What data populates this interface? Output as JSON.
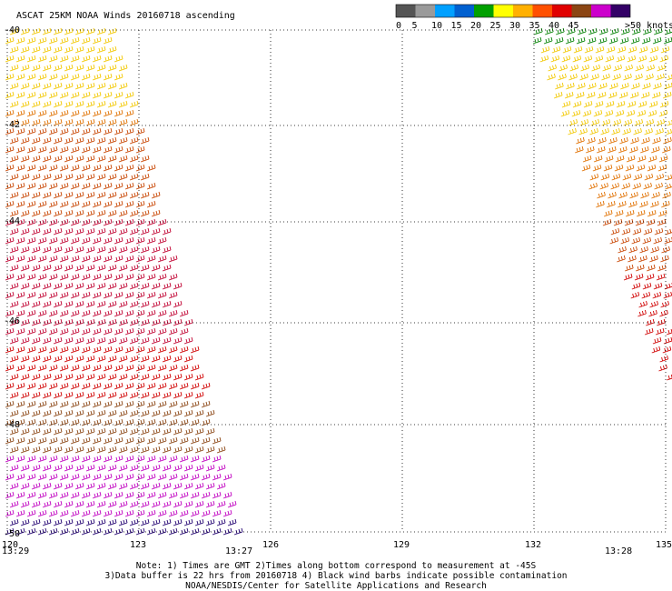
{
  "title": "ASCAT 25KM NOAA Winds 20160718 ascending",
  "legend": {
    "unit_label": ">50 knots",
    "bins": [
      {
        "label": "0",
        "color": "#555555"
      },
      {
        "label": "5",
        "color": "#9a9a9a"
      },
      {
        "label": "10",
        "color": "#00a0ff"
      },
      {
        "label": "15",
        "color": "#0060d0"
      },
      {
        "label": "20",
        "color": "#00a000"
      },
      {
        "label": "25",
        "color": "#ffff00"
      },
      {
        "label": "30",
        "color": "#ffb000"
      },
      {
        "label": "35",
        "color": "#ff5000"
      },
      {
        "label": "40",
        "color": "#e00000"
      },
      {
        "label": "45",
        "color": "#8b4513"
      },
      {
        "label": "",
        "color": "#cc00cc"
      },
      {
        "label": "",
        "color": "#330066"
      }
    ]
  },
  "map": {
    "lat_labels": [
      "-40",
      "-42",
      "-44",
      "-46",
      "-48",
      "-50"
    ],
    "lon_labels": [
      "120",
      "123",
      "126",
      "129",
      "132",
      "135"
    ],
    "lat_range": [
      -50,
      -40
    ],
    "lon_range": [
      120,
      135
    ],
    "grid": "dotted"
  },
  "times": [
    {
      "label": "13:29",
      "color": "#8000a0"
    },
    {
      "label": "13:27",
      "color": "#8000a0"
    },
    {
      "label": "13:28",
      "color": "#8000a0"
    }
  ],
  "notes": {
    "line1": "Note: 1) Times are GMT 2)Times along bottom correspond to measurement at -45S",
    "line2": "3)Data buffer is 22 hrs from 20160718 4) Black wind barbs indicate possible contamination",
    "line3": "NOAA/NESDIS/Center for Satellite Applications and Research"
  },
  "swath_colors": {
    "yellow": "#f2c800",
    "orange": "#e07000",
    "darkorange": "#c84400",
    "red": "#d00000",
    "crimson": "#c00030",
    "brown": "#8b4513",
    "magenta": "#c000c0",
    "navy": "#200070",
    "green": "#008000"
  }
}
